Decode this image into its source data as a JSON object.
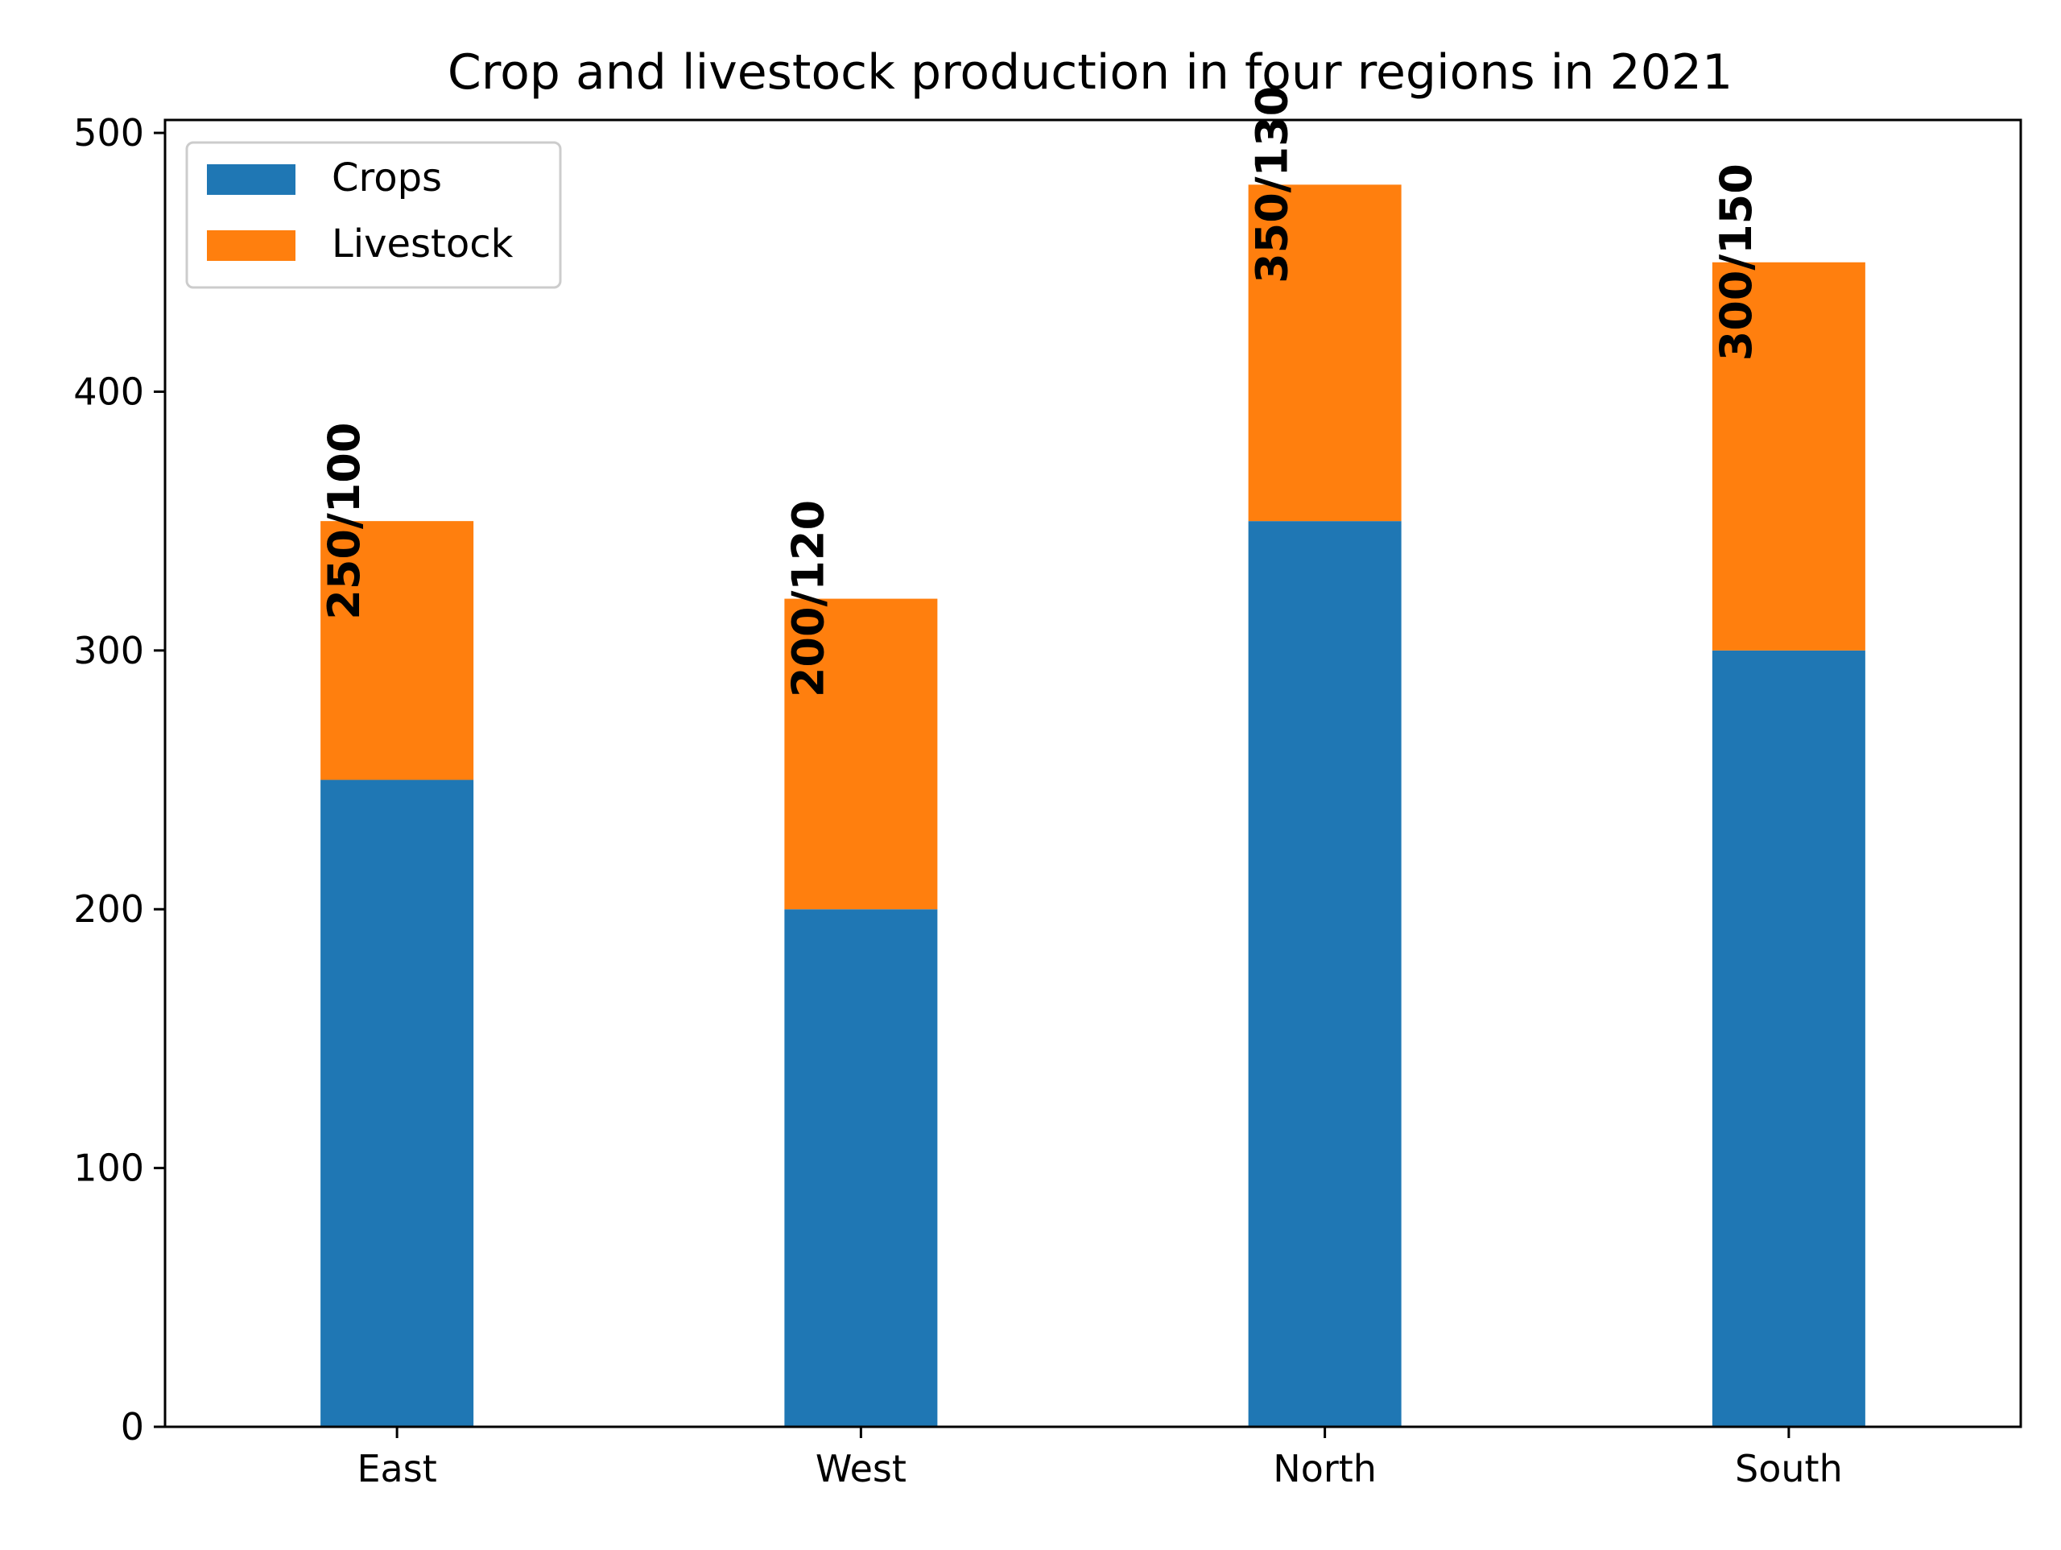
{
  "chart_data": {
    "type": "bar",
    "stacked": true,
    "title": "Crop and livestock production in four regions in 2021",
    "xlabel": "",
    "ylabel": "",
    "categories": [
      "East",
      "West",
      "North",
      "South"
    ],
    "series": [
      {
        "name": "Crops",
        "values": [
          250,
          200,
          350,
          300
        ],
        "color": "#1f77b4"
      },
      {
        "name": "Livestock",
        "values": [
          100,
          120,
          130,
          150
        ],
        "color": "#ff7f0e"
      }
    ],
    "data_labels": [
      "250/100",
      "200/120",
      "350/130",
      "300/150"
    ],
    "ylim": [
      0,
      505
    ],
    "yticks": [
      0,
      100,
      200,
      300,
      400,
      500
    ],
    "grid": false,
    "legend_position": "top-left"
  }
}
